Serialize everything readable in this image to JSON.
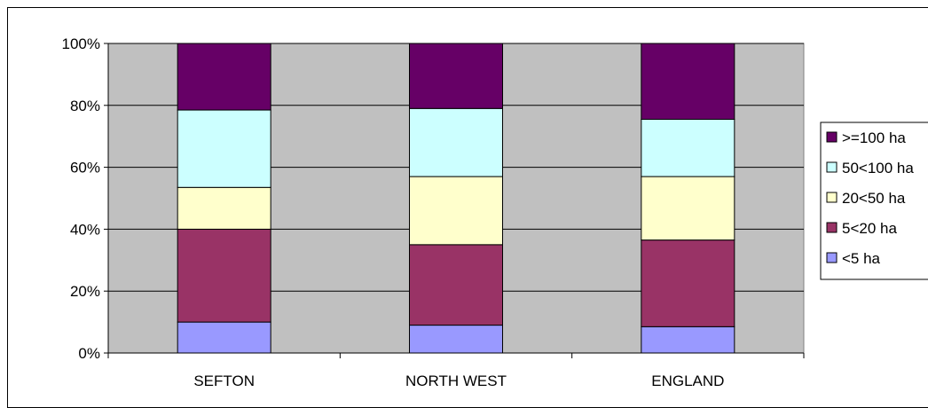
{
  "chart_data": {
    "type": "bar",
    "stacked": true,
    "percent_stacked": true,
    "categories": [
      "SEFTON",
      "NORTH WEST",
      "ENGLAND"
    ],
    "y_ticks": [
      "0%",
      "20%",
      "40%",
      "60%",
      "80%",
      "100%"
    ],
    "ylim": [
      0,
      100
    ],
    "grid": true,
    "legend_position": "right",
    "series": [
      {
        "name": "<5 ha",
        "color": "#9999ff",
        "values": [
          10,
          9,
          8.5
        ]
      },
      {
        "name": "5<20 ha",
        "color": "#993366",
        "values": [
          30,
          26,
          28
        ]
      },
      {
        "name": "20<50 ha",
        "color": "#ffffcc",
        "values": [
          13.5,
          22,
          20.5
        ]
      },
      {
        "name": "50<100 ha",
        "color": "#ccffff",
        "values": [
          25,
          22,
          18.5
        ]
      },
      {
        "name": ">=100 ha",
        "color": "#660066",
        "values": [
          21.5,
          21,
          24.5
        ]
      }
    ],
    "plot_background": "#c0c0c0"
  }
}
